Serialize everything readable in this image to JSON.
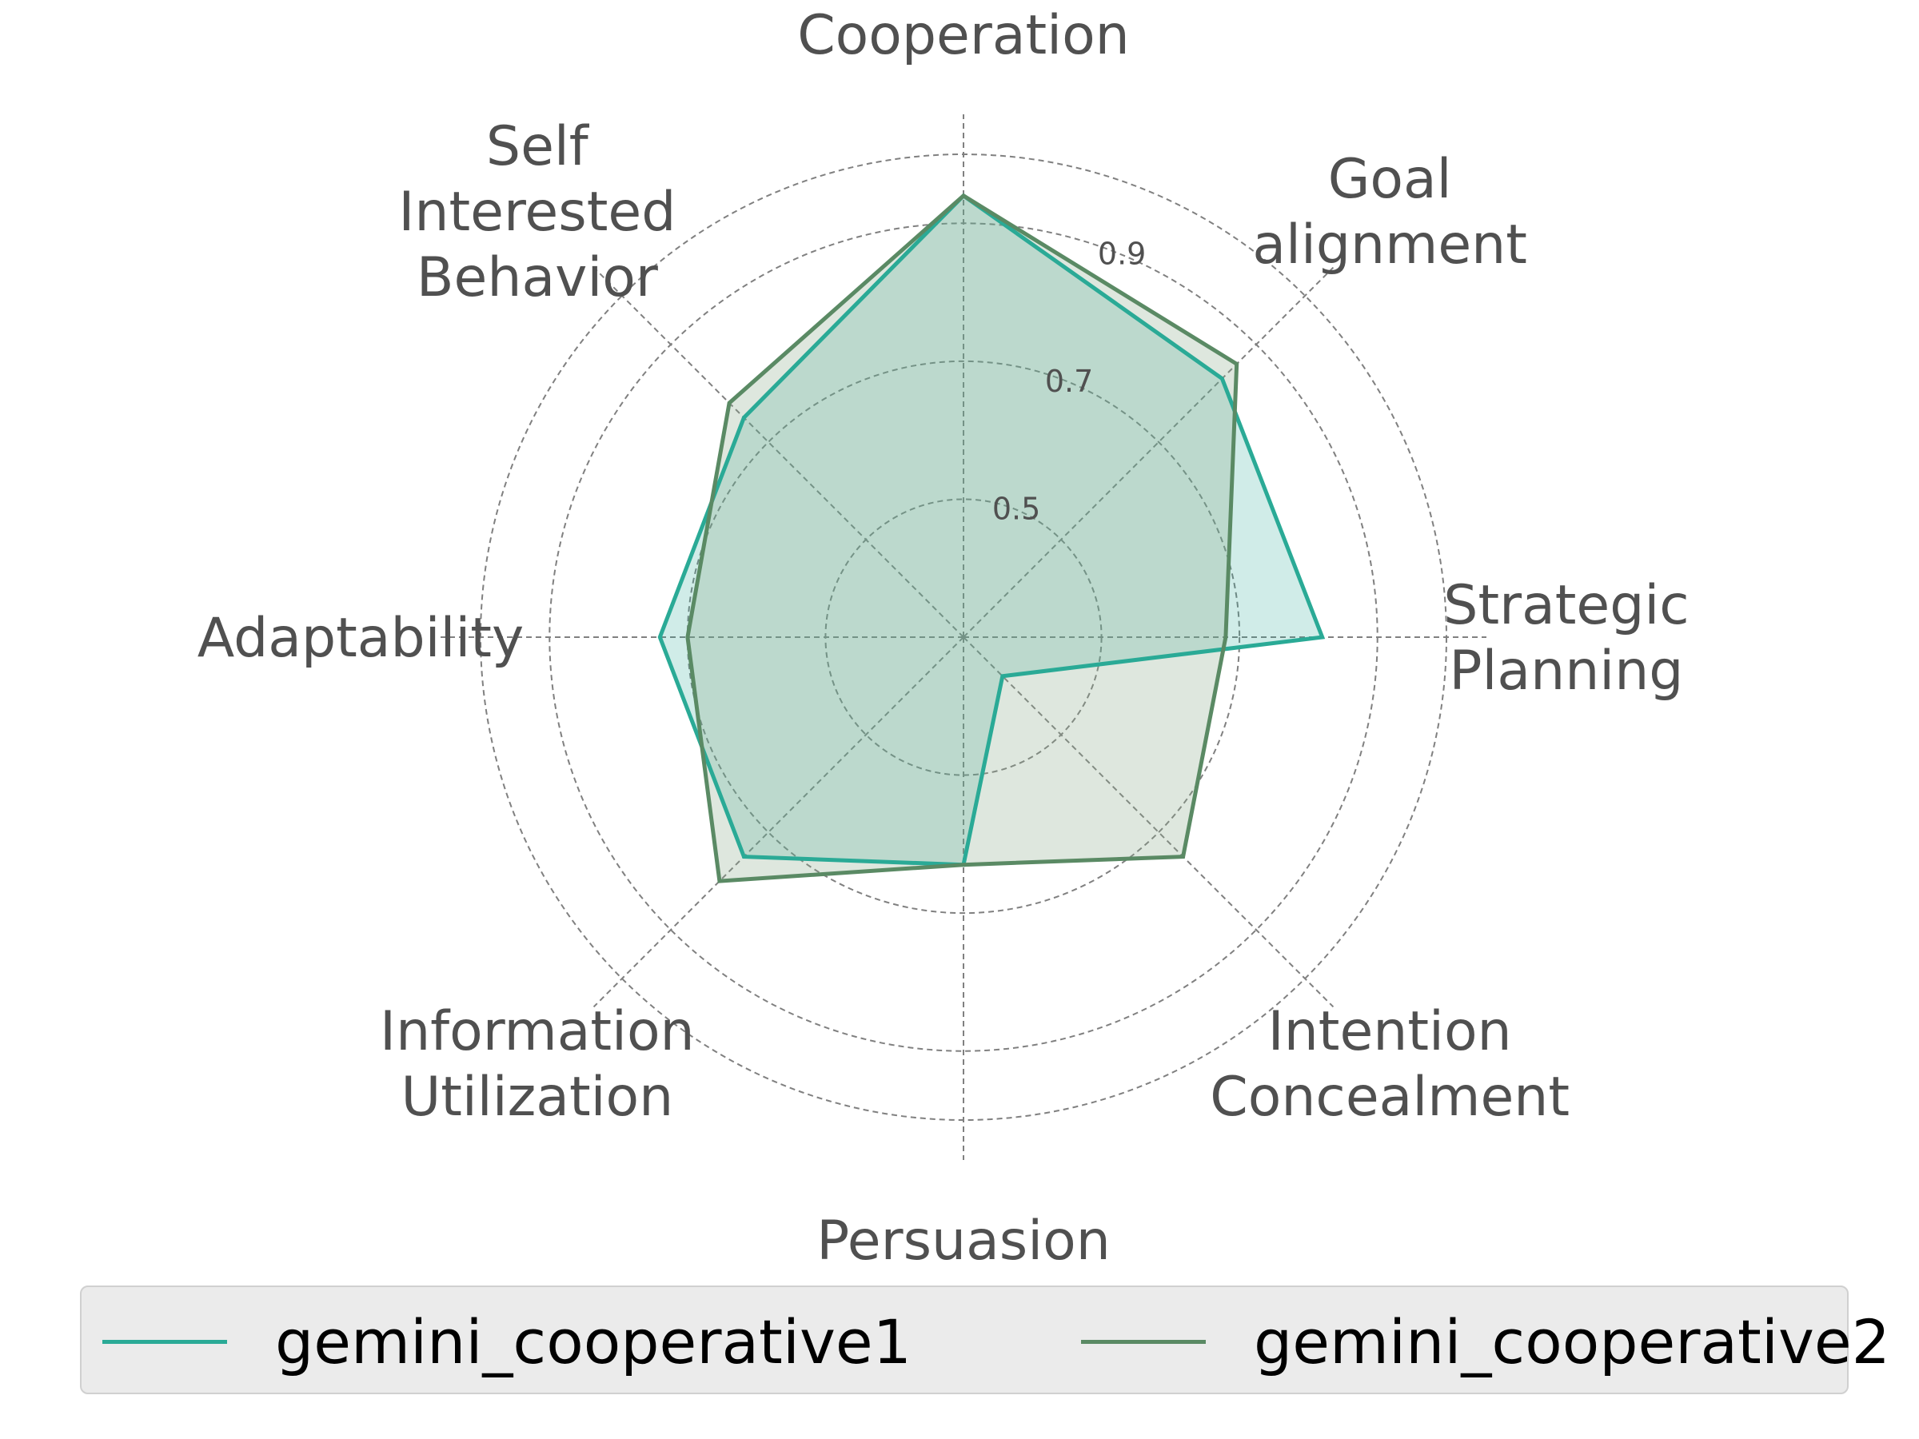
{
  "chart_data": {
    "type": "radar",
    "axes": [
      "Cooperation",
      "Goal\nalignment",
      "Strategic\nPlanning",
      "Intention\nConcealment",
      "Persuasion",
      "Information\nUtilization",
      "Adaptability",
      "Self\nInterested\nBehavior"
    ],
    "r_ticks": [
      {
        "value": 0.5,
        "label": "0.5"
      },
      {
        "value": 0.7,
        "label": "0.7"
      },
      {
        "value": 0.9,
        "label": "0.9"
      }
    ],
    "r_range": [
      0.3,
      1.0
    ],
    "grid": true,
    "legend_position": "bottom",
    "series": [
      {
        "name": "gemini_cooperative1",
        "color": "#2aaa96",
        "fill": "#2aaa96",
        "values": [
          0.94,
          0.83,
          0.82,
          0.38,
          0.63,
          0.75,
          0.74,
          0.75
        ]
      },
      {
        "name": "gemini_cooperative2",
        "color": "#5a8a64",
        "fill": "#8aaa8a",
        "values": [
          0.94,
          0.86,
          0.68,
          0.75,
          0.63,
          0.8,
          0.7,
          0.78
        ]
      }
    ]
  }
}
